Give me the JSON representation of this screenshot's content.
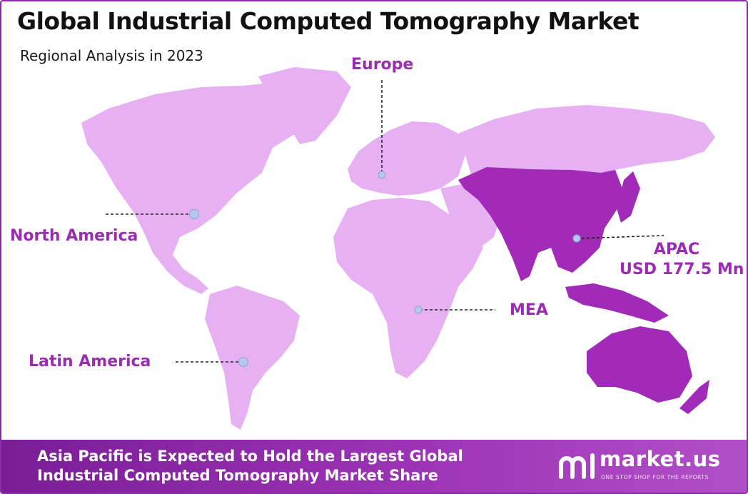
{
  "header": {
    "title": "Global Industrial Computed Tomography Market",
    "subtitle": "Regional Analysis in 2023"
  },
  "regions": {
    "europe": "Europe",
    "north_america": "North America",
    "latin_america": "Latin America",
    "mea": "MEA",
    "apac": {
      "name": "APAC",
      "value": "USD 177.5 Mn"
    }
  },
  "highlight_region": "Asia Pacific",
  "colors": {
    "land": "#e7b0f2",
    "highlight": "#a12bb8",
    "label": "#9b2bb3",
    "marker": "#b7c6ee",
    "footer": "#8e2aa8"
  },
  "footer": {
    "line1": "Asia Pacific is Expected to Hold the Largest Global",
    "line2": "Industrial Computed Tomography Market Share"
  },
  "brand": {
    "name": "market.us",
    "tagline": "ONE STOP SHOP FOR THE REPORTS",
    "logo_icon": "market-us-logo-icon"
  }
}
